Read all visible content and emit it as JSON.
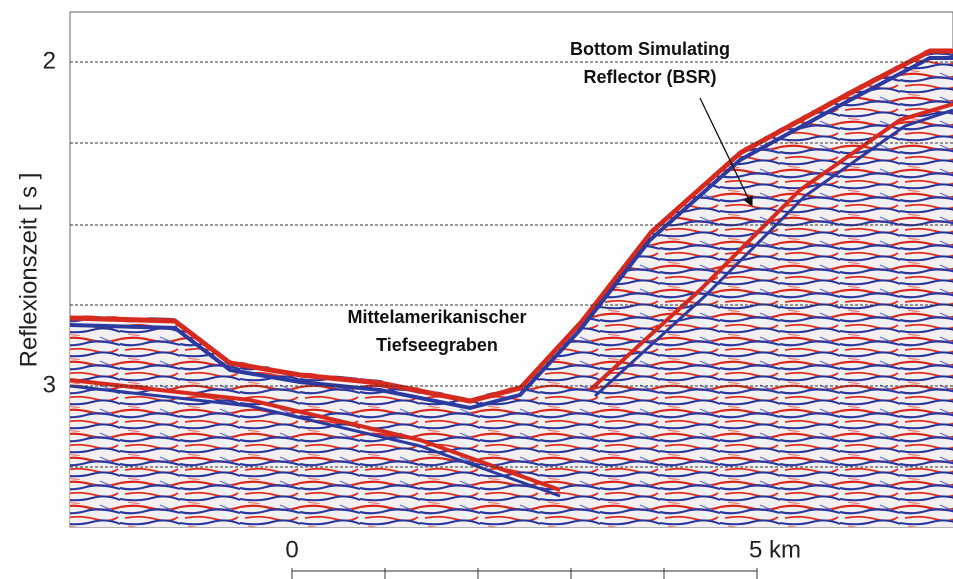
{
  "figure": {
    "y_axis_label": "Reflexionszeit [ s ]",
    "y_ticks": [
      "2",
      "3"
    ],
    "x_ticks": [
      "0",
      "5 km"
    ],
    "annotations": [
      {
        "lines": [
          "Bottom Simulating",
          "Reflector (BSR)"
        ]
      },
      {
        "lines": [
          "Mittelamerikanischer",
          "Tiefseegraben"
        ]
      }
    ]
  }
}
